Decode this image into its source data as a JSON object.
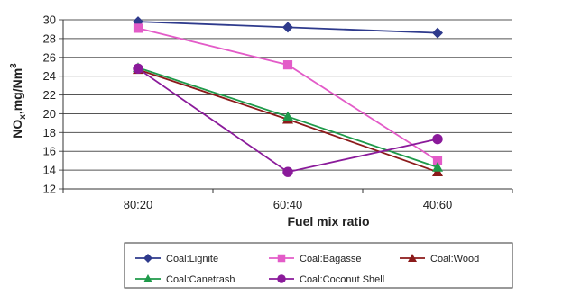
{
  "chart_data": {
    "type": "line",
    "title": "",
    "xlabel": "Fuel mix ratio",
    "ylabel_main": "NO",
    "ylabel_sub": "x",
    "ylabel_mid": ",mg/Nm",
    "ylabel_sup": "3",
    "categories": [
      "80:20",
      "60:40",
      "40:60"
    ],
    "ylim": [
      12,
      30
    ],
    "yticks": [
      12,
      14,
      16,
      18,
      20,
      22,
      24,
      26,
      28,
      30
    ],
    "grid": true,
    "legend_position": "bottom",
    "series": [
      {
        "name": "Coal:Lignite",
        "values": [
          29.8,
          29.2,
          28.6
        ],
        "color": "#2e3a8c",
        "marker": "diamond"
      },
      {
        "name": "Coal:Bagasse",
        "values": [
          29.1,
          25.2,
          15.0
        ],
        "color": "#e35bc8",
        "marker": "square"
      },
      {
        "name": "Coal:Wood",
        "values": [
          24.7,
          19.4,
          13.8
        ],
        "color": "#8b1a1a",
        "marker": "triangle"
      },
      {
        "name": "Coal:Canetrash",
        "values": [
          24.9,
          19.7,
          14.3
        ],
        "color": "#1e9a4a",
        "marker": "triangle"
      },
      {
        "name": "Coal:Coconut Shell",
        "values": [
          24.8,
          13.8,
          17.3
        ],
        "color": "#8a1a9a",
        "marker": "circle"
      }
    ]
  }
}
